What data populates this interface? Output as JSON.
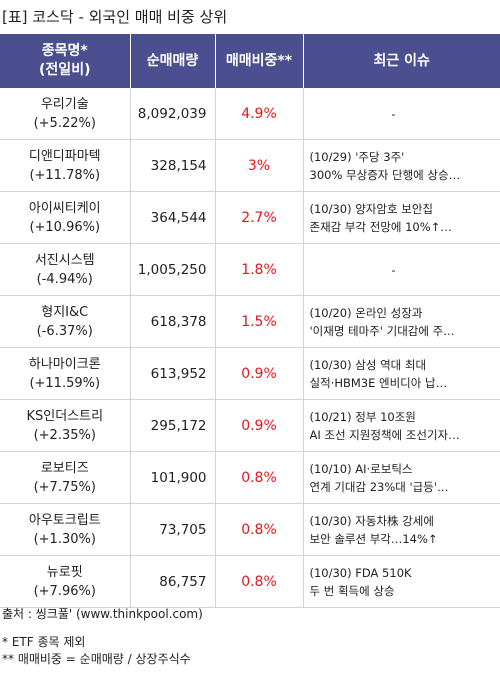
{
  "title": "[표] 코스닥 - 외국인 매매 비중 상위",
  "header": {
    "name_line1": "종목명*",
    "name_line2": "(전일비)",
    "volume": "순매매량",
    "ratio": "매매비중**",
    "issue": "최근 이슈"
  },
  "rows": [
    {
      "name": "우리기술",
      "change": "(+5.22%)",
      "volume": "8,092,039",
      "ratio": "4.9%",
      "issue1": "-",
      "issue2": ""
    },
    {
      "name": "디앤디파마텍",
      "change": "(+11.78%)",
      "volume": "328,154",
      "ratio": "3%",
      "issue1": "(10/29) '주당 3주'",
      "issue2": "300% 무상증자 단행에 상승…"
    },
    {
      "name": "아이씨티케이",
      "change": "(+10.96%)",
      "volume": "364,544",
      "ratio": "2.7%",
      "issue1": "(10/30) 양자암호 보안칩",
      "issue2": "존재감 부각 전망에 10%↑…"
    },
    {
      "name": "서진시스템",
      "change": "(-4.94%)",
      "volume": "1,005,250",
      "ratio": "1.8%",
      "issue1": "-",
      "issue2": ""
    },
    {
      "name": "형지I&C",
      "change": "(-6.37%)",
      "volume": "618,378",
      "ratio": "1.5%",
      "issue1": "(10/20) 온라인 성장과",
      "issue2": "'이재명 테마주' 기대감에 주…"
    },
    {
      "name": "하나마이크론",
      "change": "(+11.59%)",
      "volume": "613,952",
      "ratio": "0.9%",
      "issue1": "(10/30) 삼성 역대 최대",
      "issue2": "실적·HBM3E 엔비디아 납…"
    },
    {
      "name": "KS인더스트리",
      "change": "(+2.35%)",
      "volume": "295,172",
      "ratio": "0.9%",
      "issue1": "(10/21) 정부 10조원",
      "issue2": "AI 조선 지원정책에 조선기자…"
    },
    {
      "name": "로보티즈",
      "change": "(+7.75%)",
      "volume": "101,900",
      "ratio": "0.8%",
      "issue1": "(10/10) AI·로보틱스",
      "issue2": "연계 기대감 23%대 '급등'…"
    },
    {
      "name": "아우토크립트",
      "change": "(+1.30%)",
      "volume": "73,705",
      "ratio": "0.8%",
      "issue1": "(10/30) 자동차株 강세에",
      "issue2": "보안 솔루션 부각…14%↑"
    },
    {
      "name": "뉴로핏",
      "change": "(+7.96%)",
      "volume": "86,757",
      "ratio": "0.8%",
      "issue1": "(10/30) FDA 510K",
      "issue2": "두 번 획득에 상승"
    }
  ],
  "footer": {
    "source": "출처 : 씽크풀' (www.thinkpool.com)",
    "note1": "* ETF 종목 제외",
    "note2": "** 매매비중 = 순매매량 / 상장주식수"
  },
  "colors": {
    "header_bg": "#4b4f8f",
    "ratio_text": "#e8141b"
  }
}
